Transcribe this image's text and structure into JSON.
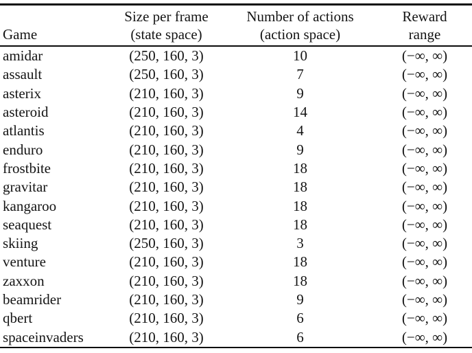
{
  "table": {
    "headers": {
      "game": "Game",
      "size_line1": "Size per frame",
      "size_line2": "(state space)",
      "actions_line1": "Number of actions",
      "actions_line2": "(action space)",
      "reward_line1": "Reward",
      "reward_line2": "range"
    },
    "rows": [
      {
        "game": "amidar",
        "size": "(250, 160, 3)",
        "actions": "10",
        "reward": "(−∞, ∞)"
      },
      {
        "game": "assault",
        "size": "(250, 160, 3)",
        "actions": "7",
        "reward": "(−∞, ∞)"
      },
      {
        "game": "asterix",
        "size": "(210, 160, 3)",
        "actions": "9",
        "reward": "(−∞, ∞)"
      },
      {
        "game": "asteroid",
        "size": "(210, 160, 3)",
        "actions": "14",
        "reward": "(−∞, ∞)"
      },
      {
        "game": "atlantis",
        "size": "(210, 160, 3)",
        "actions": "4",
        "reward": "(−∞, ∞)"
      },
      {
        "game": "enduro",
        "size": "(210, 160, 3)",
        "actions": "9",
        "reward": "(−∞, ∞)"
      },
      {
        "game": "frostbite",
        "size": "(210, 160, 3)",
        "actions": "18",
        "reward": "(−∞, ∞)"
      },
      {
        "game": "gravitar",
        "size": "(210, 160, 3)",
        "actions": "18",
        "reward": "(−∞, ∞)"
      },
      {
        "game": "kangaroo",
        "size": "(210, 160, 3)",
        "actions": "18",
        "reward": "(−∞, ∞)"
      },
      {
        "game": "seaquest",
        "size": "(210, 160, 3)",
        "actions": "18",
        "reward": "(−∞, ∞)"
      },
      {
        "game": "skiing",
        "size": "(250, 160, 3)",
        "actions": "3",
        "reward": "(−∞, ∞)"
      },
      {
        "game": "venture",
        "size": "(210, 160, 3)",
        "actions": "18",
        "reward": "(−∞, ∞)"
      },
      {
        "game": "zaxxon",
        "size": "(210, 160, 3)",
        "actions": "18",
        "reward": "(−∞, ∞)"
      },
      {
        "game": "beamrider",
        "size": "(210, 160, 3)",
        "actions": "9",
        "reward": "(−∞, ∞)"
      },
      {
        "game": "qbert",
        "size": "(210, 160, 3)",
        "actions": "6",
        "reward": "(−∞, ∞)"
      },
      {
        "game": "spaceinvaders",
        "size": "(210, 160, 3)",
        "actions": "6",
        "reward": "(−∞, ∞)"
      }
    ]
  }
}
